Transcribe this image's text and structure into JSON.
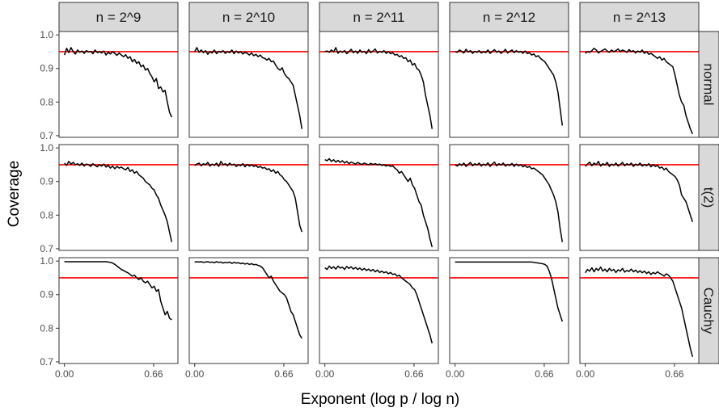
{
  "chart_data": {
    "type": "line",
    "facet_columns": [
      "n = 2^9",
      "n = 2^10",
      "n = 2^11",
      "n = 2^12",
      "n = 2^13"
    ],
    "facet_rows": [
      "normal",
      "t(2)",
      "Cauchy"
    ],
    "xlabel": "Exponent (log p / log n)",
    "ylabel": "Coverage",
    "x_ticks": [
      0.0,
      0.66
    ],
    "x_tick_labels": [
      "0.00",
      "0.66"
    ],
    "y_ticks": [
      0.7,
      0.8,
      0.9,
      1.0
    ],
    "y_tick_labels": [
      "0.7",
      "0.8",
      "0.9",
      "1.0"
    ],
    "xlim": [
      -0.04,
      0.84
    ],
    "ylim": [
      0.695,
      1.01
    ],
    "reference_line": {
      "y": 0.95,
      "color": "#ff0000"
    },
    "series_color": "#000000",
    "panel_border_color": "#333333",
    "strip_fill": "#d9d9d9",
    "grid": false,
    "x": [
      0.0,
      0.0162,
      0.0324,
      0.0486,
      0.0648,
      0.081,
      0.0972,
      0.1134,
      0.1296,
      0.1458,
      0.162,
      0.1782,
      0.1944,
      0.2106,
      0.2268,
      0.243,
      0.2592,
      0.2754,
      0.2916,
      0.3078,
      0.324,
      0.3402,
      0.3564,
      0.3726,
      0.3888,
      0.405,
      0.4212,
      0.4374,
      0.4536,
      0.4698,
      0.486,
      0.5022,
      0.5184,
      0.5346,
      0.5508,
      0.567,
      0.5832,
      0.5994,
      0.6156,
      0.6318,
      0.648,
      0.6642,
      0.6804,
      0.6966,
      0.7128,
      0.729,
      0.7452,
      0.7614,
      0.7776,
      0.7938
    ],
    "panels": [
      {
        "row": "normal",
        "col": "n = 2^9",
        "values": [
          0.94,
          0.96,
          0.947,
          0.962,
          0.95,
          0.943,
          0.955,
          0.948,
          0.952,
          0.945,
          0.953,
          0.949,
          0.951,
          0.944,
          0.955,
          0.947,
          0.95,
          0.946,
          0.952,
          0.94,
          0.948,
          0.943,
          0.95,
          0.945,
          0.939,
          0.946,
          0.94,
          0.935,
          0.941,
          0.93,
          0.935,
          0.92,
          0.927,
          0.915,
          0.92,
          0.905,
          0.91,
          0.895,
          0.9,
          0.885,
          0.875,
          0.86,
          0.87,
          0.84,
          0.845,
          0.83,
          0.835,
          0.8,
          0.77,
          0.755
        ]
      },
      {
        "row": "normal",
        "col": "n = 2^10",
        "values": [
          0.95,
          0.962,
          0.948,
          0.955,
          0.947,
          0.953,
          0.942,
          0.95,
          0.946,
          0.955,
          0.944,
          0.951,
          0.948,
          0.953,
          0.945,
          0.95,
          0.947,
          0.955,
          0.944,
          0.952,
          0.946,
          0.95,
          0.943,
          0.948,
          0.945,
          0.94,
          0.946,
          0.938,
          0.942,
          0.935,
          0.94,
          0.932,
          0.93,
          0.925,
          0.93,
          0.92,
          0.922,
          0.91,
          0.9,
          0.895,
          0.902,
          0.885,
          0.875,
          0.87,
          0.86,
          0.85,
          0.82,
          0.79,
          0.76,
          0.72
        ]
      },
      {
        "row": "normal",
        "col": "n = 2^11",
        "values": [
          0.95,
          0.952,
          0.948,
          0.955,
          0.949,
          0.962,
          0.945,
          0.952,
          0.948,
          0.953,
          0.944,
          0.95,
          0.957,
          0.947,
          0.952,
          0.945,
          0.955,
          0.948,
          0.951,
          0.944,
          0.956,
          0.947,
          0.952,
          0.958,
          0.946,
          0.951,
          0.948,
          0.953,
          0.945,
          0.95,
          0.944,
          0.947,
          0.94,
          0.942,
          0.935,
          0.938,
          0.93,
          0.932,
          0.92,
          0.925,
          0.91,
          0.915,
          0.9,
          0.895,
          0.88,
          0.86,
          0.82,
          0.79,
          0.76,
          0.72
        ]
      },
      {
        "row": "normal",
        "col": "n = 2^12",
        "values": [
          0.95,
          0.948,
          0.955,
          0.951,
          0.946,
          0.957,
          0.949,
          0.953,
          0.945,
          0.951,
          0.948,
          0.953,
          0.946,
          0.95,
          0.947,
          0.955,
          0.945,
          0.951,
          0.956,
          0.948,
          0.952,
          0.945,
          0.95,
          0.957,
          0.946,
          0.951,
          0.955,
          0.947,
          0.953,
          0.948,
          0.951,
          0.945,
          0.952,
          0.944,
          0.947,
          0.94,
          0.943,
          0.935,
          0.938,
          0.93,
          0.925,
          0.92,
          0.91,
          0.9,
          0.89,
          0.88,
          0.86,
          0.83,
          0.78,
          0.73
        ]
      },
      {
        "row": "normal",
        "col": "n = 2^13",
        "values": [
          0.945,
          0.95,
          0.948,
          0.953,
          0.96,
          0.955,
          0.946,
          0.951,
          0.954,
          0.958,
          0.952,
          0.948,
          0.955,
          0.95,
          0.953,
          0.958,
          0.95,
          0.955,
          0.952,
          0.948,
          0.956,
          0.95,
          0.953,
          0.946,
          0.952,
          0.948,
          0.955,
          0.945,
          0.95,
          0.942,
          0.945,
          0.94,
          0.935,
          0.93,
          0.935,
          0.925,
          0.93,
          0.92,
          0.915,
          0.91,
          0.905,
          0.88,
          0.85,
          0.82,
          0.8,
          0.79,
          0.76,
          0.74,
          0.72,
          0.705
        ]
      },
      {
        "row": "t(2)",
        "col": "n = 2^9",
        "values": [
          0.955,
          0.948,
          0.96,
          0.952,
          0.957,
          0.95,
          0.953,
          0.948,
          0.955,
          0.946,
          0.952,
          0.95,
          0.945,
          0.953,
          0.948,
          0.944,
          0.95,
          0.946,
          0.952,
          0.943,
          0.948,
          0.94,
          0.946,
          0.938,
          0.945,
          0.94,
          0.943,
          0.938,
          0.935,
          0.942,
          0.93,
          0.935,
          0.925,
          0.93,
          0.92,
          0.915,
          0.91,
          0.9,
          0.895,
          0.89,
          0.88,
          0.875,
          0.86,
          0.85,
          0.83,
          0.815,
          0.8,
          0.78,
          0.75,
          0.72
        ]
      },
      {
        "row": "t(2)",
        "col": "n = 2^10",
        "values": [
          0.948,
          0.952,
          0.955,
          0.947,
          0.953,
          0.95,
          0.957,
          0.946,
          0.952,
          0.948,
          0.955,
          0.945,
          0.96,
          0.95,
          0.953,
          0.947,
          0.955,
          0.949,
          0.952,
          0.945,
          0.95,
          0.947,
          0.953,
          0.944,
          0.951,
          0.946,
          0.95,
          0.945,
          0.948,
          0.942,
          0.945,
          0.94,
          0.942,
          0.936,
          0.938,
          0.93,
          0.935,
          0.925,
          0.93,
          0.92,
          0.915,
          0.905,
          0.9,
          0.89,
          0.88,
          0.87,
          0.85,
          0.81,
          0.77,
          0.75
        ]
      },
      {
        "row": "t(2)",
        "col": "n = 2^11",
        "values": [
          0.965,
          0.962,
          0.968,
          0.96,
          0.965,
          0.958,
          0.963,
          0.957,
          0.962,
          0.955,
          0.96,
          0.953,
          0.958,
          0.955,
          0.952,
          0.957,
          0.953,
          0.951,
          0.955,
          0.952,
          0.95,
          0.954,
          0.951,
          0.953,
          0.95,
          0.952,
          0.948,
          0.95,
          0.946,
          0.949,
          0.945,
          0.947,
          0.94,
          0.935,
          0.925,
          0.93,
          0.92,
          0.91,
          0.9,
          0.91,
          0.89,
          0.88,
          0.86,
          0.84,
          0.83,
          0.8,
          0.78,
          0.76,
          0.73,
          0.705
        ]
      },
      {
        "row": "t(2)",
        "col": "n = 2^12",
        "values": [
          0.95,
          0.946,
          0.953,
          0.948,
          0.955,
          0.945,
          0.951,
          0.957,
          0.947,
          0.953,
          0.949,
          0.955,
          0.946,
          0.952,
          0.948,
          0.956,
          0.945,
          0.952,
          0.958,
          0.947,
          0.953,
          0.949,
          0.955,
          0.946,
          0.951,
          0.948,
          0.954,
          0.945,
          0.952,
          0.947,
          0.95,
          0.944,
          0.948,
          0.942,
          0.945,
          0.938,
          0.94,
          0.935,
          0.93,
          0.925,
          0.92,
          0.91,
          0.9,
          0.89,
          0.875,
          0.86,
          0.84,
          0.81,
          0.76,
          0.72
        ]
      },
      {
        "row": "t(2)",
        "col": "n = 2^13",
        "values": [
          0.945,
          0.952,
          0.958,
          0.947,
          0.955,
          0.95,
          0.96,
          0.946,
          0.953,
          0.949,
          0.957,
          0.945,
          0.952,
          0.948,
          0.955,
          0.946,
          0.951,
          0.957,
          0.947,
          0.953,
          0.949,
          0.955,
          0.945,
          0.952,
          0.948,
          0.955,
          0.946,
          0.951,
          0.947,
          0.953,
          0.944,
          0.95,
          0.945,
          0.948,
          0.94,
          0.943,
          0.935,
          0.94,
          0.93,
          0.925,
          0.92,
          0.915,
          0.905,
          0.89,
          0.86,
          0.85,
          0.84,
          0.82,
          0.8,
          0.78
        ]
      },
      {
        "row": "Cauchy",
        "col": "n = 2^9",
        "values": [
          0.998,
          0.998,
          0.998,
          0.998,
          0.998,
          0.998,
          0.998,
          0.998,
          0.998,
          0.998,
          0.998,
          0.998,
          0.998,
          0.998,
          0.998,
          0.998,
          0.998,
          0.998,
          0.998,
          0.998,
          0.997,
          0.996,
          0.994,
          0.99,
          0.985,
          0.98,
          0.975,
          0.972,
          0.968,
          0.965,
          0.96,
          0.955,
          0.958,
          0.95,
          0.945,
          0.95,
          0.94,
          0.935,
          0.94,
          0.93,
          0.92,
          0.925,
          0.91,
          0.915,
          0.88,
          0.86,
          0.84,
          0.85,
          0.83,
          0.825
        ]
      },
      {
        "row": "Cauchy",
        "col": "n = 2^10",
        "values": [
          0.997,
          0.998,
          0.997,
          0.998,
          0.996,
          0.997,
          0.998,
          0.996,
          0.997,
          0.995,
          0.998,
          0.996,
          0.997,
          0.994,
          0.996,
          0.995,
          0.997,
          0.993,
          0.996,
          0.994,
          0.995,
          0.992,
          0.994,
          0.991,
          0.993,
          0.99,
          0.992,
          0.989,
          0.99,
          0.987,
          0.985,
          0.98,
          0.97,
          0.96,
          0.95,
          0.955,
          0.94,
          0.93,
          0.92,
          0.91,
          0.905,
          0.9,
          0.89,
          0.87,
          0.85,
          0.84,
          0.82,
          0.8,
          0.78,
          0.77
        ]
      },
      {
        "row": "Cauchy",
        "col": "n = 2^11",
        "values": [
          0.98,
          0.975,
          0.985,
          0.978,
          0.983,
          0.976,
          0.985,
          0.979,
          0.982,
          0.975,
          0.984,
          0.978,
          0.983,
          0.976,
          0.981,
          0.975,
          0.979,
          0.973,
          0.978,
          0.972,
          0.976,
          0.97,
          0.975,
          0.968,
          0.973,
          0.966,
          0.97,
          0.965,
          0.968,
          0.962,
          0.966,
          0.96,
          0.962,
          0.955,
          0.958,
          0.95,
          0.945,
          0.94,
          0.935,
          0.93,
          0.92,
          0.915,
          0.9,
          0.88,
          0.86,
          0.84,
          0.82,
          0.8,
          0.78,
          0.755
        ]
      },
      {
        "row": "Cauchy",
        "col": "n = 2^12",
        "values": [
          0.997,
          0.997,
          0.997,
          0.997,
          0.997,
          0.997,
          0.997,
          0.997,
          0.997,
          0.997,
          0.997,
          0.997,
          0.997,
          0.997,
          0.997,
          0.997,
          0.997,
          0.997,
          0.997,
          0.997,
          0.997,
          0.997,
          0.997,
          0.997,
          0.997,
          0.997,
          0.997,
          0.997,
          0.997,
          0.997,
          0.997,
          0.997,
          0.997,
          0.997,
          0.997,
          0.997,
          0.996,
          0.995,
          0.994,
          0.993,
          0.992,
          0.99,
          0.985,
          0.97,
          0.95,
          0.92,
          0.89,
          0.86,
          0.84,
          0.82
        ]
      },
      {
        "row": "Cauchy",
        "col": "n = 2^13",
        "values": [
          0.965,
          0.975,
          0.97,
          0.98,
          0.968,
          0.978,
          0.972,
          0.982,
          0.97,
          0.976,
          0.968,
          0.978,
          0.971,
          0.975,
          0.966,
          0.974,
          0.97,
          0.978,
          0.967,
          0.972,
          0.969,
          0.976,
          0.968,
          0.973,
          0.966,
          0.971,
          0.965,
          0.97,
          0.963,
          0.968,
          0.96,
          0.966,
          0.962,
          0.968,
          0.963,
          0.96,
          0.955,
          0.962,
          0.958,
          0.95,
          0.94,
          0.92,
          0.9,
          0.88,
          0.86,
          0.83,
          0.8,
          0.77,
          0.74,
          0.715
        ]
      }
    ]
  }
}
